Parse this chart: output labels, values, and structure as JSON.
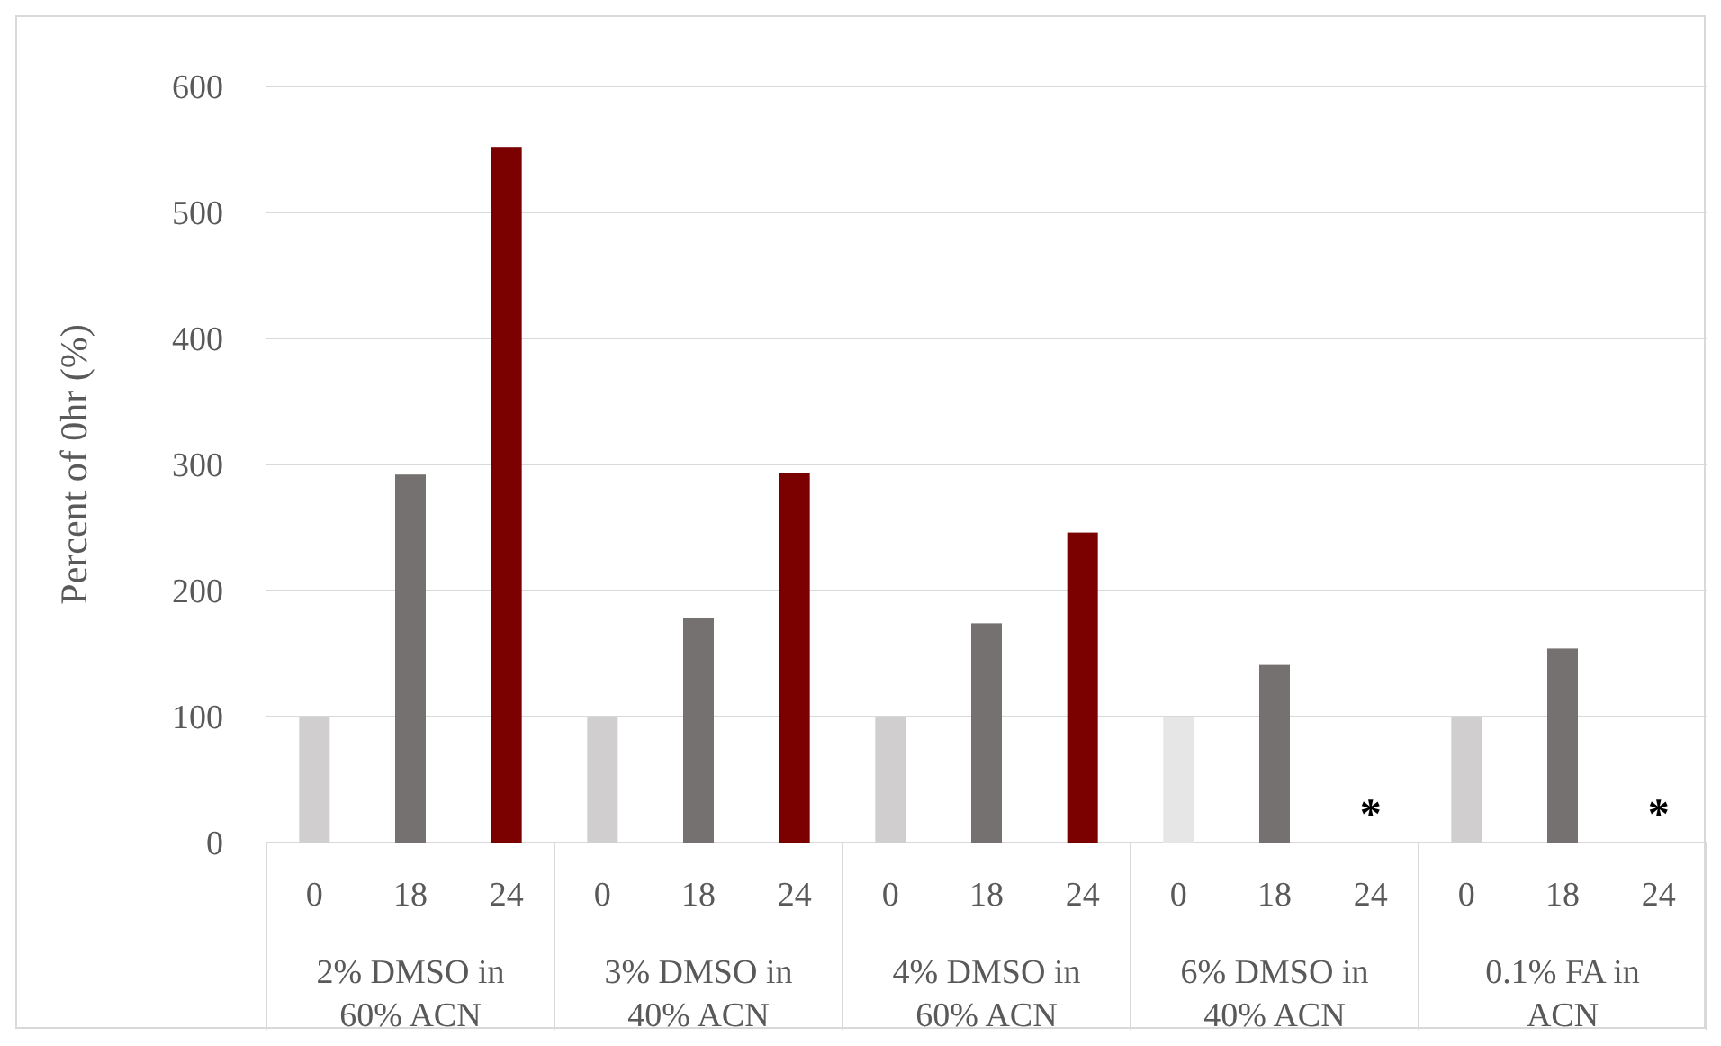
{
  "chart_data": {
    "type": "bar",
    "ylabel": "Percent of 0hr (%)",
    "categories": [
      "0",
      "18",
      "24",
      "0",
      "18",
      "24",
      "0",
      "18",
      "24",
      "0",
      "18",
      "24",
      "0",
      "18",
      "24"
    ],
    "values": [
      100,
      292,
      552,
      100,
      178,
      293,
      100,
      174,
      246,
      100,
      141,
      null,
      100,
      154,
      null
    ],
    "colors": [
      "#d0cece",
      "#767171",
      "#7b0000",
      "#d0cece",
      "#767171",
      "#7b0000",
      "#d0cece",
      "#767171",
      "#7b0000",
      "#e7e6e6",
      "#767171",
      null,
      "#d0cece",
      "#767171",
      null
    ],
    "ylim": [
      0,
      600
    ],
    "yticks": [
      0,
      100,
      200,
      300,
      400,
      500,
      600
    ],
    "grid": "y",
    "annotations": [
      "2% DMSO in 60% ACN",
      "3% DMSO in 40% ACN",
      "4% DMSO in 60% ACN",
      "6% DMSO in 40% ACN",
      "0.1% FA in ACN",
      "*",
      "*"
    ]
  }
}
